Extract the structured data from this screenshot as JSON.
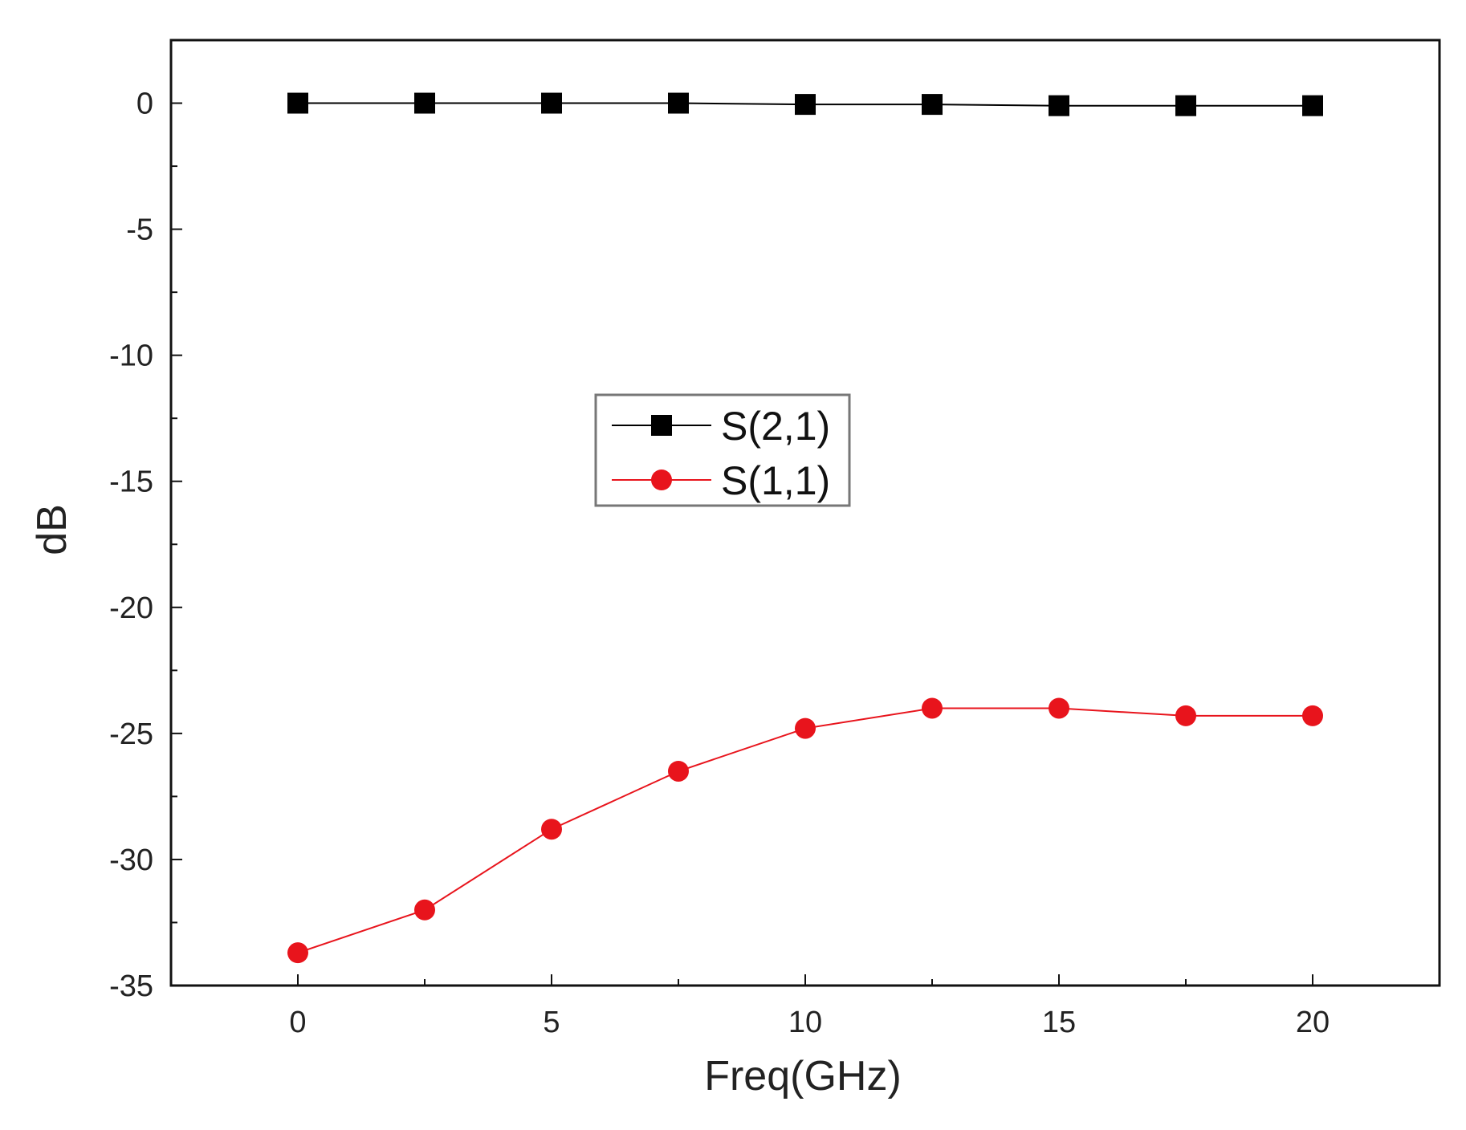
{
  "chart_data": {
    "type": "line",
    "xlabel": "Freq(GHz)",
    "ylabel": "dB",
    "xlim": [
      -2.5,
      22.5
    ],
    "ylim": [
      -35,
      2.5
    ],
    "xticks": [
      0,
      5,
      10,
      15,
      20
    ],
    "yticks": [
      0,
      -5,
      -10,
      -15,
      -20,
      -25,
      -30,
      -35
    ],
    "x_tick_labels": [
      "0",
      "5",
      "10",
      "15",
      "20"
    ],
    "y_tick_labels": [
      "0",
      "-5",
      "-10",
      "-15",
      "-20",
      "-25",
      "-30",
      "-35"
    ],
    "grid": false,
    "legend_position": "center",
    "series": [
      {
        "name": "S(2,1)",
        "color": "#000000",
        "marker": "square",
        "x": [
          0,
          2.5,
          5,
          7.5,
          10,
          12.5,
          15,
          17.5,
          20
        ],
        "y": [
          0,
          0,
          0,
          0,
          -0.05,
          -0.05,
          -0.1,
          -0.1,
          -0.1
        ]
      },
      {
        "name": "S(1,1)",
        "color": "#e8141c",
        "marker": "circle",
        "x": [
          0,
          2.5,
          5,
          7.5,
          10,
          12.5,
          15,
          17.5,
          20
        ],
        "y": [
          -33.7,
          -32.0,
          -28.8,
          -26.5,
          -24.8,
          -24.0,
          -24.0,
          -24.3,
          -24.3
        ]
      }
    ]
  }
}
